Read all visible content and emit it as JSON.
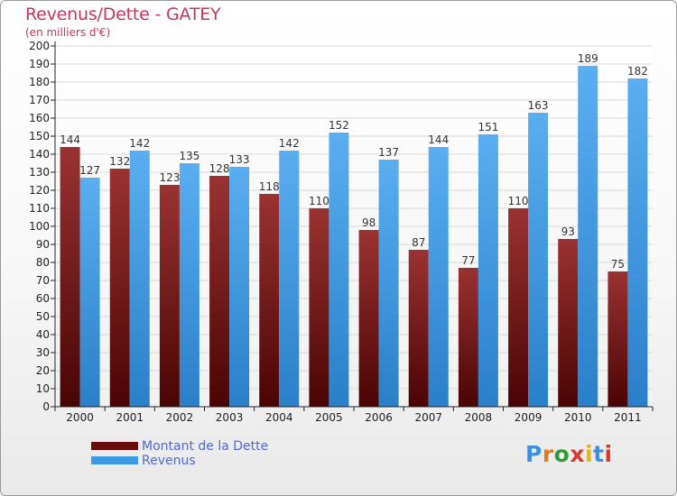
{
  "header": {
    "title": "Revenus/Dette - GATEY",
    "subtitle": "(en milliers d'€)"
  },
  "legend": {
    "items": [
      {
        "label": "Montant de la Dette",
        "color": "#6b0c0c"
      },
      {
        "label": "Revenus",
        "color": "#3d9be3"
      }
    ]
  },
  "logo": {
    "text": "Proxiti",
    "letter_colors": [
      "#3d8ee0",
      "#e07b22",
      "#2f9a3a",
      "#d63a2c",
      "#e2b51a",
      "#3d8ee0",
      "#d63a2c"
    ]
  },
  "colors": {
    "title": "#c4365b",
    "debt": "#6b0c0c",
    "revenue": "#3d9be3",
    "legend_text": "#5267cf"
  },
  "chart_data": {
    "type": "bar",
    "title": "Revenus/Dette - GATEY",
    "subtitle": "(en milliers d'€)",
    "xlabel": "",
    "ylabel": "",
    "ylim": [
      0,
      200
    ],
    "ytick_step": 10,
    "grid": true,
    "legend_position": "bottom-left",
    "categories": [
      "2000",
      "2001",
      "2002",
      "2003",
      "2004",
      "2005",
      "2006",
      "2007",
      "2008",
      "2009",
      "2010",
      "2011"
    ],
    "series": [
      {
        "name": "Montant de la Dette",
        "values": [
          144,
          132,
          123,
          128,
          118,
          110,
          98,
          87,
          77,
          110,
          93,
          75
        ]
      },
      {
        "name": "Revenus",
        "values": [
          127,
          142,
          135,
          133,
          142,
          152,
          137,
          144,
          151,
          163,
          189,
          182
        ]
      }
    ]
  }
}
